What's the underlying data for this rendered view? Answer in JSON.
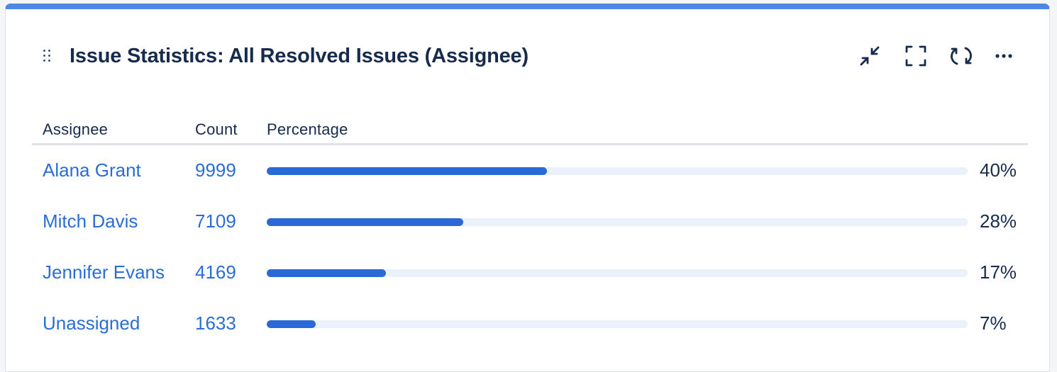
{
  "gadget": {
    "title": "Issue Statistics: All Resolved Issues (Assignee)",
    "accent_color": "#4c87e8",
    "actions": [
      {
        "name": "minimize",
        "icon": "minimize-icon"
      },
      {
        "name": "fullscreen",
        "icon": "fullscreen-icon"
      },
      {
        "name": "refresh",
        "icon": "refresh-icon"
      },
      {
        "name": "more",
        "icon": "more-icon"
      }
    ]
  },
  "table": {
    "headers": {
      "assignee": "Assignee",
      "count": "Count",
      "percentage": "Percentage"
    },
    "rows": [
      {
        "assignee": "Alana Grant",
        "count": "9999",
        "percentage": "40%",
        "fraction": 0.4
      },
      {
        "assignee": "Mitch Davis",
        "count": "7109",
        "percentage": "28%",
        "fraction": 0.28
      },
      {
        "assignee": "Jennifer Evans",
        "count": "4169",
        "percentage": "17%",
        "fraction": 0.17
      },
      {
        "assignee": "Unassigned",
        "count": "1633",
        "percentage": "7%",
        "fraction": 0.07
      }
    ],
    "link_color": "#2b6dd6",
    "bar_color": "#2b6ad6",
    "track_color": "#eaf1fb"
  }
}
